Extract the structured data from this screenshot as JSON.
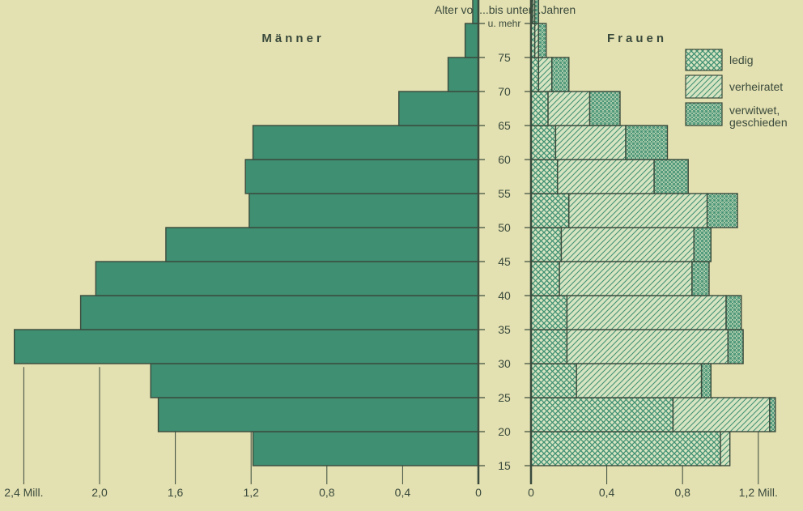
{
  "chart_data": {
    "type": "bar",
    "subtype": "population-pyramid",
    "header": "Alter von...bis unter...Jahren",
    "left_title": "Männer",
    "right_title": "Frauen",
    "age_labels": [
      "15",
      "20",
      "25",
      "30",
      "35",
      "40",
      "45",
      "50",
      "55",
      "60",
      "65",
      "70",
      "75",
      "u. mehr"
    ],
    "age_groups": [
      "15-20",
      "20-25",
      "25-30",
      "30-35",
      "35-40",
      "40-45",
      "45-50",
      "50-55",
      "55-60",
      "60-65",
      "65-70",
      "70-75",
      "75-80",
      "80 u. mehr"
    ],
    "men_values": [
      1.19,
      1.69,
      1.73,
      2.45,
      2.1,
      2.02,
      1.65,
      1.21,
      1.23,
      1.19,
      0.42,
      0.16,
      0.07,
      0.03
    ],
    "women": {
      "series": [
        {
          "name": "ledig",
          "values": [
            1.0,
            0.75,
            0.24,
            0.19,
            0.19,
            0.15,
            0.16,
            0.2,
            0.14,
            0.13,
            0.09,
            0.04,
            0.02,
            0.01
          ]
        },
        {
          "name": "verheiratet",
          "values": [
            0.05,
            0.51,
            0.66,
            0.85,
            0.84,
            0.7,
            0.7,
            0.73,
            0.51,
            0.37,
            0.22,
            0.07,
            0.02,
            0.01
          ]
        },
        {
          "name": "verwitwet, geschieden",
          "values": [
            0.0,
            0.03,
            0.05,
            0.08,
            0.08,
            0.09,
            0.09,
            0.16,
            0.18,
            0.22,
            0.16,
            0.09,
            0.04,
            0.02
          ]
        }
      ]
    },
    "men_axis": {
      "ticks": [
        "2,4 Mill.",
        "2,0",
        "1,6",
        "1,2",
        "0,8",
        "0,4",
        "0"
      ],
      "tick_values": [
        2.4,
        2.0,
        1.6,
        1.2,
        0.8,
        0.4,
        0
      ],
      "range": [
        0,
        2.45
      ]
    },
    "women_axis": {
      "ticks": [
        "0",
        "0,4",
        "0,8",
        "1,2 Mill."
      ],
      "tick_values": [
        0,
        0.4,
        0.8,
        1.2
      ],
      "range": [
        0,
        1.3
      ]
    },
    "legend": [
      "ledig",
      "verheiratet",
      "verwitwet,",
      "geschieden"
    ],
    "legend_position": "top-right",
    "colors": {
      "background": "#e3e0b1",
      "men_fill": "#3f8f72",
      "women_fill": "#d6e4c1",
      "pattern_stroke": "#3f8f72",
      "outline": "#3a4a3c"
    }
  }
}
